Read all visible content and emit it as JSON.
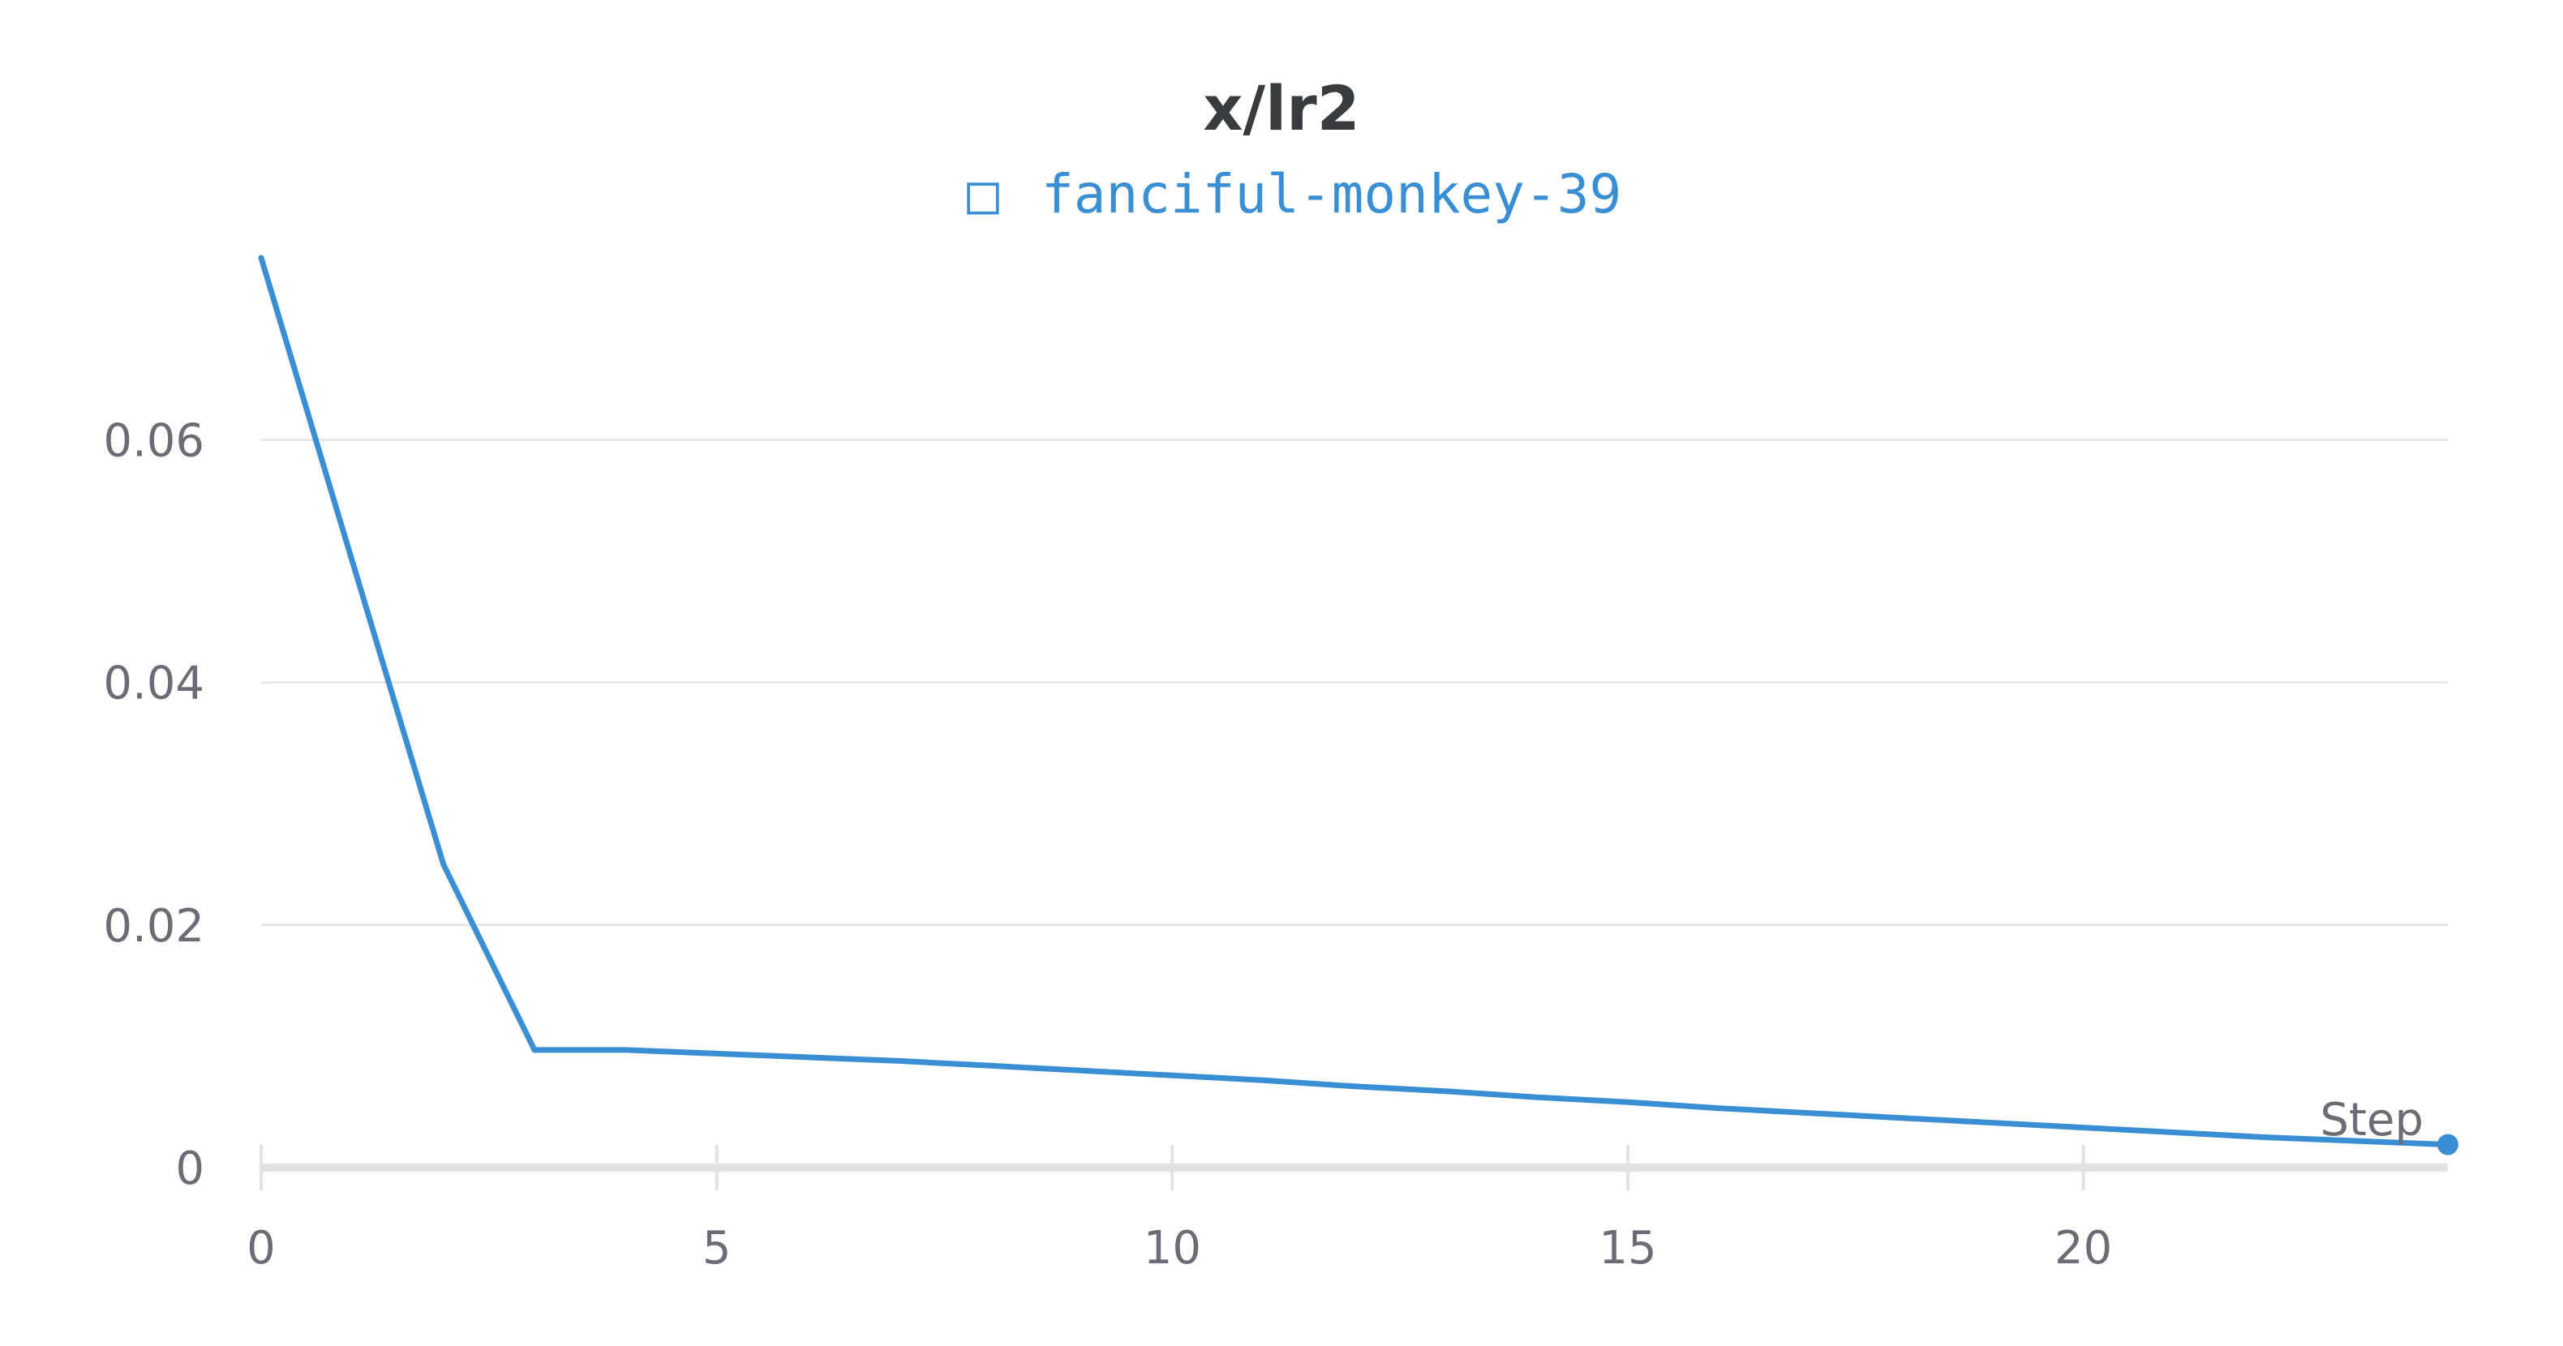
{
  "chart_data": {
    "type": "line",
    "title": "x/lr2",
    "xlabel": "Step",
    "ylabel": "",
    "xlim": [
      0,
      24
    ],
    "ylim": [
      0,
      0.075
    ],
    "x_ticks": [
      0,
      5,
      10,
      15,
      20
    ],
    "y_ticks": [
      0,
      0.02,
      0.04,
      0.06
    ],
    "x_tick_labels": [
      "0",
      "5",
      "10",
      "15",
      "20"
    ],
    "y_tick_labels": [
      "0",
      "0.02",
      "0.04",
      "0.06"
    ],
    "grid": true,
    "legend": {
      "placement": "top-center",
      "marker_glyph": "□"
    },
    "series": [
      {
        "name": "fanciful-monkey-39",
        "color": "#3a8fd4",
        "x": [
          0,
          1,
          2,
          3,
          4,
          5,
          6,
          7,
          8,
          9,
          10,
          11,
          12,
          13,
          14,
          15,
          16,
          17,
          18,
          19,
          20,
          21,
          22,
          23,
          24
        ],
        "y": [
          0.075,
          0.05,
          0.025,
          0.0097,
          0.0097,
          0.0094,
          0.0091,
          0.0088,
          0.0084,
          0.008,
          0.0076,
          0.0072,
          0.0067,
          0.0063,
          0.0058,
          0.0054,
          0.0049,
          0.0045,
          0.0041,
          0.0037,
          0.0033,
          0.0029,
          0.0025,
          0.0022,
          0.0019
        ]
      }
    ]
  }
}
